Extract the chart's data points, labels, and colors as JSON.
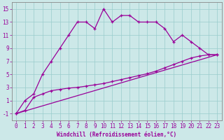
{
  "xlabel": "Windchill (Refroidissement éolien,°C)",
  "background_color": "#cce8e8",
  "grid_color": "#99cccc",
  "line_color": "#990099",
  "spine_color": "#888888",
  "xlim": [
    -0.5,
    23.5
  ],
  "ylim": [
    -2,
    16
  ],
  "xticks": [
    0,
    1,
    2,
    3,
    4,
    5,
    6,
    7,
    8,
    9,
    10,
    11,
    12,
    13,
    14,
    15,
    16,
    17,
    18,
    19,
    20,
    21,
    22,
    23
  ],
  "yticks": [
    -1,
    1,
    3,
    5,
    7,
    9,
    11,
    13,
    15
  ],
  "series1_x": [
    0,
    1,
    2,
    3,
    4,
    5,
    6,
    7,
    8,
    9,
    10,
    11,
    12,
    13,
    14,
    15,
    16,
    17,
    18,
    19,
    20,
    21,
    22,
    23
  ],
  "series1_y": [
    -1,
    1,
    2,
    5,
    7,
    9,
    11,
    13,
    13,
    12,
    15,
    13,
    14,
    14,
    13,
    13,
    13,
    12,
    10,
    11,
    10,
    9,
    8,
    8
  ],
  "series2_x": [
    0,
    1,
    2,
    3,
    4,
    5,
    6,
    7,
    8,
    9,
    10,
    11,
    12,
    13,
    14,
    15,
    16,
    17,
    18,
    19,
    20,
    21,
    22,
    23
  ],
  "series2_y": [
    -1,
    -0.5,
    1.5,
    2.0,
    2.5,
    2.7,
    2.9,
    3.0,
    3.2,
    3.4,
    3.6,
    3.9,
    4.2,
    4.5,
    4.8,
    5.1,
    5.5,
    6.0,
    6.5,
    7.0,
    7.5,
    7.8,
    8.0,
    8.0
  ],
  "series3_x": [
    0,
    23
  ],
  "series3_y": [
    -1,
    8
  ],
  "tick_fontsize": 5.5,
  "xlabel_fontsize": 5.5
}
